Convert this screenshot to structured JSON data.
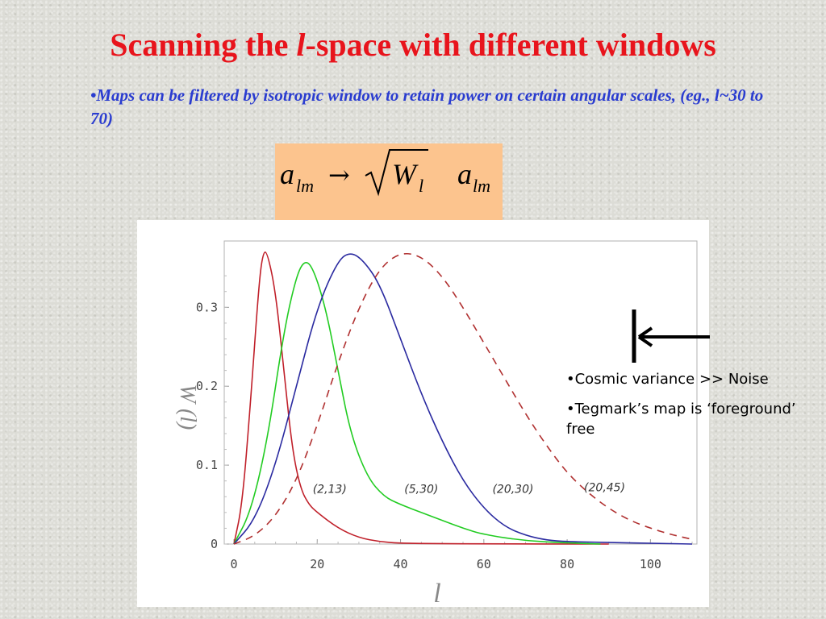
{
  "slide": {
    "title_before": "Scanning the ",
    "title_italic": "l",
    "title_after": "-space with different windows",
    "bullet_text": "•Maps can be filtered  by isotropic window to retain power on  certain angular scales,  (eg., l~30 to 70)",
    "formula": {
      "a": "a",
      "lm_sub": "lm",
      "arrow": "→",
      "W": "W",
      "l_sub": "l"
    }
  },
  "notes": {
    "items": [
      "•Cosmic variance >> Noise",
      "•Tegmark’s map is ‘foreground’  free"
    ]
  },
  "colors": {
    "title": "#e8141c",
    "bullet": "#2a3cd0",
    "formula_bg": "#fcc48e",
    "curve_2_13": "#c0202a",
    "curve_5_30": "#22cc22",
    "curve_20_30": "#2a2aa0",
    "curve_20_45": "#b03030"
  },
  "chart_data": {
    "type": "line",
    "xlabel": "l",
    "ylabel": "W (l)",
    "xlim": [
      0,
      110
    ],
    "ylim": [
      0,
      0.38
    ],
    "xticks": [
      "0",
      "20",
      "40",
      "60",
      "80",
      "100"
    ],
    "yticks": [
      "0",
      "0.1",
      "0.2",
      "0.3"
    ],
    "grid": false,
    "series": [
      {
        "name": "(2,13)",
        "style": "solid",
        "x": [
          0,
          2,
          4,
          6,
          7,
          8,
          10,
          12,
          14,
          16,
          18,
          20,
          25,
          30,
          35,
          40,
          50,
          60,
          90
        ],
        "y": [
          0,
          0.05,
          0.18,
          0.33,
          0.37,
          0.37,
          0.32,
          0.22,
          0.12,
          0.07,
          0.05,
          0.04,
          0.02,
          0.008,
          0.003,
          0.001,
          0.0005,
          0.0002,
          0
        ]
      },
      {
        "name": "(5,30)",
        "style": "solid",
        "x": [
          0,
          4,
          8,
          12,
          15,
          17,
          19,
          22,
          25,
          28,
          32,
          36,
          40,
          45,
          50,
          55,
          60,
          70,
          80,
          88
        ],
        "y": [
          0,
          0.04,
          0.13,
          0.27,
          0.34,
          0.36,
          0.35,
          0.3,
          0.22,
          0.14,
          0.085,
          0.06,
          0.05,
          0.04,
          0.03,
          0.02,
          0.012,
          0.004,
          0.0015,
          0
        ]
      },
      {
        "name": "(20,30)",
        "style": "solid",
        "x": [
          0,
          5,
          10,
          15,
          20,
          25,
          28,
          31,
          35,
          40,
          45,
          50,
          55,
          60,
          65,
          70,
          75,
          80,
          90,
          100,
          110
        ],
        "y": [
          0,
          0.03,
          0.1,
          0.2,
          0.3,
          0.36,
          0.37,
          0.36,
          0.33,
          0.26,
          0.19,
          0.13,
          0.08,
          0.045,
          0.022,
          0.011,
          0.005,
          0.003,
          0.002,
          0.001,
          0
        ]
      },
      {
        "name": "(20,45)",
        "style": "dashed",
        "x": [
          0,
          5,
          10,
          15,
          20,
          25,
          30,
          35,
          40,
          45,
          50,
          55,
          60,
          65,
          70,
          75,
          80,
          85,
          90,
          95,
          100,
          105,
          110
        ],
        "y": [
          0,
          0.01,
          0.035,
          0.08,
          0.15,
          0.23,
          0.3,
          0.35,
          0.37,
          0.365,
          0.34,
          0.3,
          0.255,
          0.21,
          0.165,
          0.125,
          0.09,
          0.065,
          0.045,
          0.03,
          0.02,
          0.012,
          0.006
        ]
      }
    ],
    "annotations": [
      {
        "text": "(2,13)",
        "x": 23,
        "y": 0.065
      },
      {
        "text": "(5,30)",
        "x": 45,
        "y": 0.065
      },
      {
        "text": "(20,30)",
        "x": 67,
        "y": 0.065
      },
      {
        "text": "(20,45)",
        "x": 89,
        "y": 0.067
      }
    ]
  }
}
